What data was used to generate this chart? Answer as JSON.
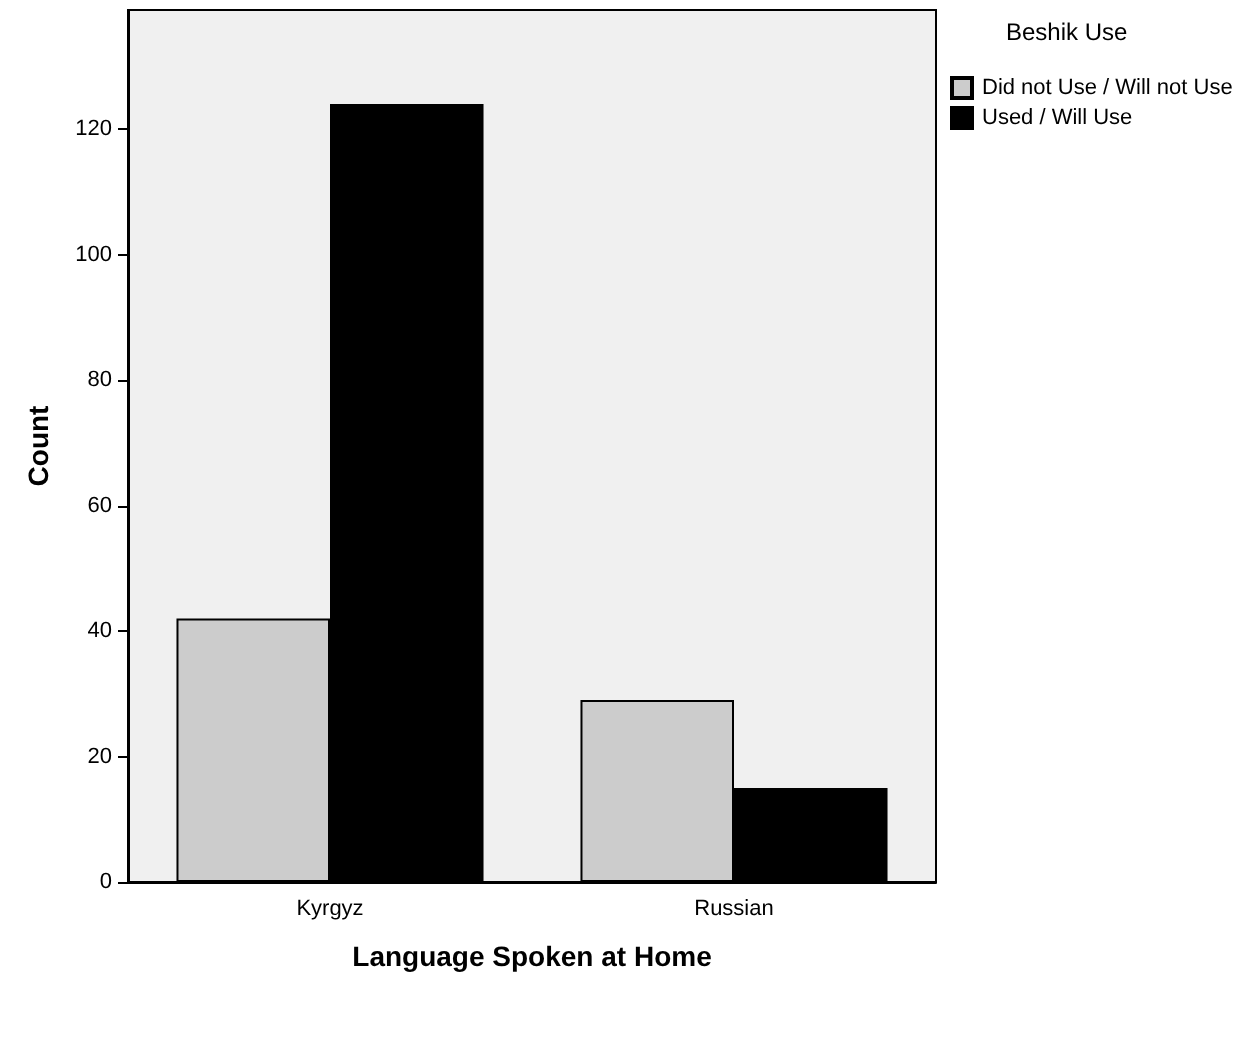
{
  "chart_data": {
    "type": "bar",
    "xlabel": "Language Spoken at Home",
    "ylabel": "Count",
    "legend_title": "Beshik Use",
    "categories": [
      "Kyrgyz",
      "Russian"
    ],
    "series": [
      {
        "name": "Did not Use / Will not Use",
        "color": "#cccccc",
        "values": [
          42,
          29
        ]
      },
      {
        "name": "Used / Will Use",
        "color": "#000000",
        "values": [
          124,
          15
        ]
      }
    ],
    "ylim": [
      0,
      139
    ],
    "yticks": [
      0,
      20,
      40,
      60,
      80,
      100,
      120
    ],
    "grid": false,
    "legend": "top right"
  }
}
